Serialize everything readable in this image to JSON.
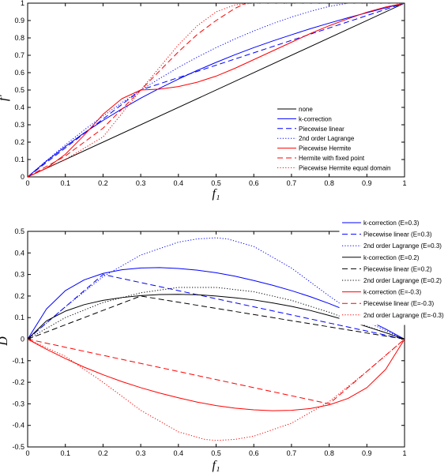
{
  "chart_data": [
    {
      "type": "line",
      "xlabel": "f₁",
      "ylabel": "f′",
      "xlim": [
        0,
        1
      ],
      "ylim": [
        0,
        1
      ],
      "xticks": [
        "0",
        "0.1",
        "0.2",
        "0.3",
        "0.4",
        "0.5",
        "0.6",
        "0.7",
        "0.8",
        "0.9",
        "1"
      ],
      "yticks": [
        "0",
        "0.1",
        "0.2",
        "0.3",
        "0.4",
        "0.5",
        "0.6",
        "0.7",
        "0.8",
        "0.9",
        "1"
      ],
      "legend_position": "lower-right",
      "series": [
        {
          "name": "none",
          "color": "#000000",
          "style": "solid",
          "x": [
            0,
            1
          ],
          "y": [
            0,
            1
          ]
        },
        {
          "name": "k-correction",
          "color": "#0000ff",
          "style": "solid",
          "x": [
            0,
            0.05,
            0.1,
            0.15,
            0.2,
            0.25,
            0.3,
            0.35,
            0.4,
            0.45,
            0.5,
            0.55,
            0.6,
            0.65,
            0.7,
            0.75,
            0.8,
            0.85,
            0.9,
            0.95,
            1
          ],
          "y": [
            0,
            0.091,
            0.175,
            0.253,
            0.325,
            0.391,
            0.453,
            0.51,
            0.563,
            0.613,
            0.659,
            0.703,
            0.744,
            0.782,
            0.818,
            0.853,
            0.885,
            0.916,
            0.945,
            0.973,
            1
          ]
        },
        {
          "name": "Piecewise linear",
          "color": "#0000ff",
          "style": "dashed",
          "x": [
            0,
            0.3,
            1
          ],
          "y": [
            0,
            0.5,
            1
          ]
        },
        {
          "name": "2nd order Lagrange",
          "color": "#0000ff",
          "style": "dotted",
          "x": [
            0,
            0.05,
            0.1,
            0.15,
            0.2,
            0.25,
            0.3,
            0.35,
            0.4,
            0.45,
            0.5,
            0.55,
            0.6,
            0.65,
            0.7,
            0.75,
            0.8,
            0.85,
            0.9,
            0.95,
            1
          ],
          "y": [
            0,
            0.094,
            0.184,
            0.27,
            0.35,
            0.427,
            0.499,
            0.566,
            0.63,
            0.689,
            0.744,
            0.794,
            0.84,
            0.882,
            0.92,
            0.953,
            0.981,
            1.0,
            1.0,
            1.0,
            1
          ]
        },
        {
          "name": "Piecewise Hermite",
          "color": "#ff0000",
          "style": "solid",
          "x": [
            0,
            0.05,
            0.1,
            0.15,
            0.2,
            0.25,
            0.3,
            0.35,
            0.4,
            0.45,
            0.5,
            0.55,
            0.6,
            0.65,
            0.7,
            0.75,
            0.8,
            0.85,
            0.9,
            0.95,
            1
          ],
          "y": [
            0,
            0.05,
            0.13,
            0.24,
            0.36,
            0.45,
            0.5,
            0.505,
            0.52,
            0.545,
            0.58,
            0.625,
            0.675,
            0.725,
            0.775,
            0.825,
            0.87,
            0.91,
            0.948,
            0.978,
            1
          ]
        },
        {
          "name": "Hermite with fixed point",
          "color": "#ff0000",
          "style": "dashed",
          "x": [
            0,
            0.1,
            0.2,
            0.3,
            0.35,
            0.4,
            0.45,
            0.5,
            0.55,
            0.58,
            0.7,
            0.8,
            0.9,
            1
          ],
          "y": [
            0,
            0.12,
            0.28,
            0.5,
            0.61,
            0.72,
            0.82,
            0.9,
            0.97,
            1.0,
            1.0,
            1.0,
            1.0,
            1
          ]
        },
        {
          "name": "Piecewise Hermite equal domain",
          "color": "#ff0000",
          "style": "dotted",
          "x": [
            0,
            0.1,
            0.2,
            0.3,
            0.35,
            0.4,
            0.45,
            0.5,
            0.55,
            0.6,
            0.7,
            0.8,
            0.9,
            1
          ],
          "y": [
            0,
            0.1,
            0.23,
            0.5,
            0.63,
            0.76,
            0.87,
            0.95,
            0.99,
            1.0,
            1.0,
            1.0,
            1.0,
            1
          ]
        }
      ]
    },
    {
      "type": "line",
      "xlabel": "f₁",
      "ylabel": "D",
      "xlim": [
        0,
        1
      ],
      "ylim": [
        -0.5,
        0.5
      ],
      "xticks": [
        "0",
        "0.1",
        "0.2",
        "0.3",
        "0.4",
        "0.5",
        "0.6",
        "0.7",
        "0.8",
        "0.9",
        "1"
      ],
      "yticks": [
        "-0.5",
        "-0.4",
        "-0.3",
        "-0.2",
        "-0.1",
        "0",
        "0.1",
        "0.2",
        "0.3",
        "0.4",
        "0.5"
      ],
      "legend_position": "upper-right",
      "series": [
        {
          "name": "k-correction (E=0.3)",
          "color": "#0000ff",
          "style": "solid",
          "x": [
            0,
            0.05,
            0.1,
            0.15,
            0.2,
            0.25,
            0.3,
            0.35,
            0.4,
            0.45,
            0.5,
            0.55,
            0.6,
            0.65,
            0.7,
            0.75,
            0.8,
            0.85,
            0.9,
            0.95,
            1
          ],
          "y": [
            0,
            0.14,
            0.225,
            0.275,
            0.305,
            0.322,
            0.33,
            0.332,
            0.328,
            0.32,
            0.308,
            0.292,
            0.272,
            0.25,
            0.225,
            0.197,
            0.165,
            0.13,
            0.09,
            0.047,
            0
          ]
        },
        {
          "name": "Piecewise linear (E=0.3)",
          "color": "#0000ff",
          "style": "dashed",
          "x": [
            0,
            0.2,
            1
          ],
          "y": [
            0,
            0.3,
            0
          ]
        },
        {
          "name": "2nd order Lagrange (E=0.3)",
          "color": "#0000ff",
          "style": "dotted",
          "x": [
            0,
            0.1,
            0.2,
            0.3,
            0.4,
            0.45,
            0.5,
            0.53,
            0.6,
            0.7,
            0.8,
            0.9,
            1
          ],
          "y": [
            0,
            0.15,
            0.29,
            0.39,
            0.45,
            0.465,
            0.47,
            0.465,
            0.43,
            0.33,
            0.2,
            0.08,
            0
          ]
        },
        {
          "name": "k-correction (E=0.2)",
          "color": "#000000",
          "style": "solid",
          "x": [
            0,
            0.05,
            0.1,
            0.15,
            0.2,
            0.25,
            0.3,
            0.35,
            0.4,
            0.45,
            0.5,
            0.55,
            0.6,
            0.65,
            0.7,
            0.75,
            0.8,
            0.85,
            0.9,
            0.95,
            1
          ],
          "y": [
            0,
            0.085,
            0.13,
            0.16,
            0.18,
            0.193,
            0.202,
            0.207,
            0.208,
            0.206,
            0.2,
            0.192,
            0.182,
            0.168,
            0.152,
            0.133,
            0.11,
            0.085,
            0.058,
            0.03,
            0
          ]
        },
        {
          "name": "Piecewise linear (E=0.2)",
          "color": "#000000",
          "style": "dashed",
          "x": [
            0,
            0.3,
            1
          ],
          "y": [
            0,
            0.2,
            0
          ]
        },
        {
          "name": "2nd order Lagrange (E=0.2)",
          "color": "#000000",
          "style": "dotted",
          "x": [
            0,
            0.1,
            0.2,
            0.3,
            0.4,
            0.5,
            0.6,
            0.7,
            0.8,
            0.9,
            1
          ],
          "y": [
            0,
            0.1,
            0.17,
            0.215,
            0.24,
            0.24,
            0.22,
            0.18,
            0.125,
            0.06,
            0
          ]
        },
        {
          "name": "k-correction (E=-0.3)",
          "color": "#ff0000",
          "style": "solid",
          "x": [
            0,
            0.05,
            0.1,
            0.15,
            0.2,
            0.25,
            0.3,
            0.35,
            0.4,
            0.45,
            0.5,
            0.55,
            0.6,
            0.65,
            0.7,
            0.75,
            0.8,
            0.85,
            0.9,
            0.95,
            1
          ],
          "y": [
            0,
            -0.047,
            -0.09,
            -0.13,
            -0.165,
            -0.197,
            -0.225,
            -0.25,
            -0.272,
            -0.292,
            -0.308,
            -0.32,
            -0.328,
            -0.332,
            -0.33,
            -0.322,
            -0.305,
            -0.275,
            -0.225,
            -0.14,
            0
          ]
        },
        {
          "name": "Piecewise linear (E=-0.3)",
          "color": "#ff0000",
          "style": "dashed",
          "x": [
            0,
            0.8,
            1
          ],
          "y": [
            0,
            -0.3,
            0
          ]
        },
        {
          "name": "2nd order Lagrange (E=-0.3)",
          "color": "#ff0000",
          "style": "dotted",
          "x": [
            0,
            0.1,
            0.2,
            0.3,
            0.4,
            0.47,
            0.5,
            0.55,
            0.6,
            0.7,
            0.8,
            0.9,
            1
          ],
          "y": [
            0,
            -0.08,
            -0.2,
            -0.33,
            -0.43,
            -0.465,
            -0.47,
            -0.465,
            -0.45,
            -0.39,
            -0.29,
            -0.15,
            0
          ]
        }
      ]
    }
  ]
}
